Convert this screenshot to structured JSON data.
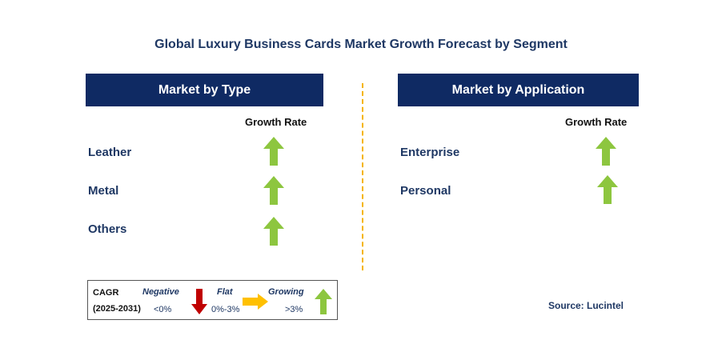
{
  "title": "Global Luxury Business Cards Market Growth Forecast by Segment",
  "left_panel": {
    "header": "Market by Type",
    "growth_label": "Growth Rate",
    "rows": [
      {
        "label": "Leather",
        "trend": "growing"
      },
      {
        "label": "Metal",
        "trend": "growing"
      },
      {
        "label": "Others",
        "trend": "growing"
      }
    ]
  },
  "right_panel": {
    "header": "Market by Application",
    "growth_label": "Growth Rate",
    "rows": [
      {
        "label": "Enterprise",
        "trend": "growing"
      },
      {
        "label": "Personal",
        "trend": "growing"
      }
    ]
  },
  "legend": {
    "cagr": "CAGR",
    "period": "(2025-2031)",
    "negative_label": "Negative",
    "negative_value": "<0%",
    "flat_label": "Flat",
    "flat_value": "0%-3%",
    "growing_label": "Growing",
    "growing_value": ">3%"
  },
  "source": "Source: Lucintel",
  "colors": {
    "header_bg": "#0f2a63",
    "growing": "#8dc63f",
    "negative": "#c00000",
    "flat": "#ffc000",
    "divider": "#f5b400"
  }
}
